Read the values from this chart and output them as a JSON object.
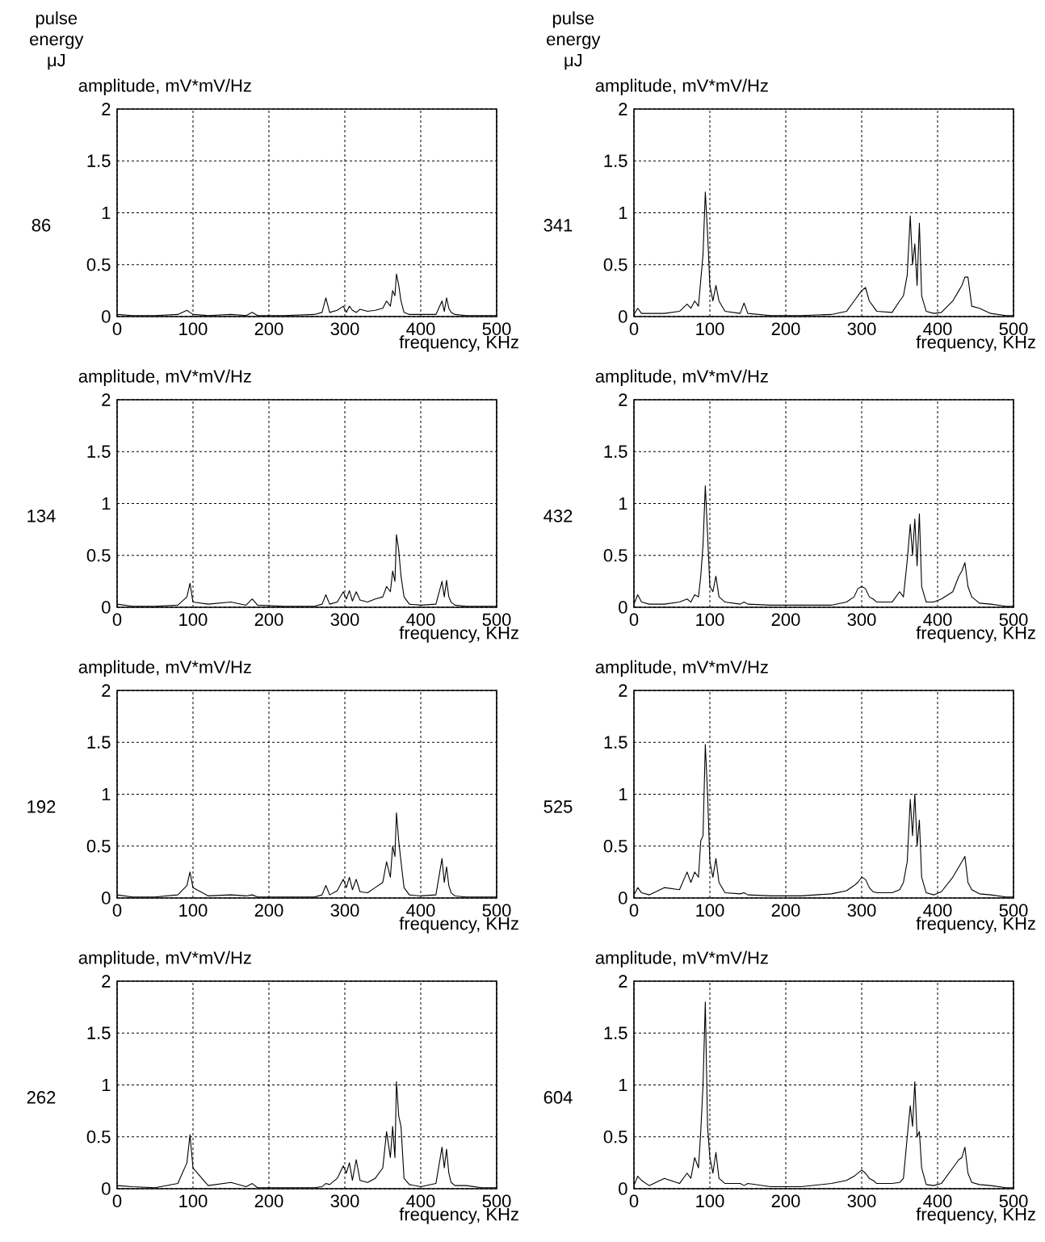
{
  "chart_data": [
    {
      "type": "line",
      "title": "86",
      "ylabel": "amplitude, mV*mV/Hz",
      "xlabel": "frequency, KHz",
      "annotations": [
        "pulse energy μJ"
      ],
      "grid": true,
      "xlim": [
        0,
        500
      ],
      "ylim": [
        0,
        2
      ],
      "xticks": [
        0,
        100,
        200,
        300,
        400,
        500
      ],
      "yticks": [
        0,
        0.5,
        1,
        1.5,
        2
      ],
      "series": [
        {
          "color": "#000000",
          "x": [
            0,
            20,
            50,
            80,
            92,
            96,
            100,
            120,
            150,
            170,
            178,
            185,
            220,
            260,
            270,
            275,
            280,
            290,
            298,
            302,
            306,
            310,
            315,
            320,
            330,
            340,
            350,
            355,
            360,
            363,
            366,
            368,
            371,
            374,
            378,
            385,
            400,
            420,
            428,
            431,
            434,
            437,
            440,
            445,
            460,
            480,
            500
          ],
          "values": [
            0.02,
            0.01,
            0.01,
            0.02,
            0.06,
            0.04,
            0.02,
            0.01,
            0.02,
            0.01,
            0.04,
            0.01,
            0.01,
            0.02,
            0.04,
            0.18,
            0.04,
            0.06,
            0.1,
            0.04,
            0.1,
            0.06,
            0.04,
            0.07,
            0.05,
            0.06,
            0.08,
            0.15,
            0.1,
            0.25,
            0.2,
            0.41,
            0.3,
            0.15,
            0.04,
            0.02,
            0.02,
            0.02,
            0.15,
            0.05,
            0.18,
            0.08,
            0.04,
            0.02,
            0.01,
            0.01,
            0.01
          ]
        }
      ]
    },
    {
      "type": "line",
      "title": "341",
      "ylabel": "amplitude, mV*mV/Hz",
      "xlabel": "frequency, KHz",
      "annotations": [
        "pulse energy μJ"
      ],
      "grid": true,
      "xlim": [
        0,
        500
      ],
      "ylim": [
        0,
        2
      ],
      "xticks": [
        0,
        100,
        200,
        300,
        400,
        500
      ],
      "yticks": [
        0,
        0.5,
        1,
        1.5,
        2
      ],
      "series": [
        {
          "color": "#000000",
          "x": [
            0,
            5,
            10,
            20,
            40,
            60,
            70,
            75,
            80,
            85,
            88,
            91,
            94,
            97,
            100,
            104,
            108,
            112,
            120,
            140,
            145,
            150,
            180,
            220,
            260,
            280,
            290,
            295,
            300,
            305,
            310,
            315,
            320,
            340,
            350,
            355,
            360,
            364,
            367,
            370,
            373,
            376,
            379,
            385,
            395,
            405,
            420,
            428,
            432,
            436,
            440,
            445,
            455,
            470,
            490,
            500
          ],
          "values": [
            0.02,
            0.08,
            0.03,
            0.03,
            0.03,
            0.05,
            0.12,
            0.08,
            0.15,
            0.1,
            0.35,
            0.6,
            1.2,
            0.8,
            0.3,
            0.15,
            0.3,
            0.15,
            0.05,
            0.03,
            0.13,
            0.03,
            0.01,
            0.01,
            0.02,
            0.05,
            0.15,
            0.2,
            0.25,
            0.28,
            0.15,
            0.1,
            0.05,
            0.04,
            0.15,
            0.2,
            0.4,
            0.97,
            0.5,
            0.7,
            0.3,
            0.9,
            0.2,
            0.05,
            0.03,
            0.04,
            0.15,
            0.25,
            0.3,
            0.38,
            0.38,
            0.1,
            0.08,
            0.03,
            0.01,
            0.01
          ]
        }
      ]
    },
    {
      "type": "line",
      "title": "134",
      "ylabel": "amplitude, mV*mV/Hz",
      "xlabel": "frequency, KHz",
      "grid": true,
      "xlim": [
        0,
        500
      ],
      "ylim": [
        0,
        2
      ],
      "xticks": [
        0,
        100,
        200,
        300,
        400,
        500
      ],
      "yticks": [
        0,
        0.5,
        1,
        1.5,
        2
      ],
      "series": [
        {
          "color": "#000000",
          "x": [
            0,
            20,
            50,
            80,
            92,
            96,
            100,
            120,
            150,
            170,
            178,
            185,
            220,
            260,
            270,
            275,
            280,
            290,
            298,
            302,
            306,
            310,
            315,
            320,
            330,
            340,
            350,
            355,
            360,
            363,
            366,
            368,
            371,
            374,
            378,
            385,
            400,
            420,
            428,
            431,
            434,
            437,
            440,
            445,
            460,
            480,
            500
          ],
          "values": [
            0.03,
            0.01,
            0.01,
            0.02,
            0.1,
            0.23,
            0.05,
            0.03,
            0.05,
            0.02,
            0.08,
            0.02,
            0.01,
            0.01,
            0.03,
            0.12,
            0.03,
            0.05,
            0.15,
            0.08,
            0.16,
            0.06,
            0.15,
            0.07,
            0.05,
            0.08,
            0.1,
            0.2,
            0.15,
            0.35,
            0.25,
            0.7,
            0.55,
            0.3,
            0.1,
            0.03,
            0.02,
            0.03,
            0.25,
            0.1,
            0.26,
            0.1,
            0.05,
            0.02,
            0.01,
            0.01,
            0.01
          ]
        }
      ]
    },
    {
      "type": "line",
      "title": "432",
      "ylabel": "amplitude, mV*mV/Hz",
      "xlabel": "frequency, KHz",
      "grid": true,
      "xlim": [
        0,
        500
      ],
      "ylim": [
        0,
        2
      ],
      "xticks": [
        0,
        100,
        200,
        300,
        400,
        500
      ],
      "yticks": [
        0,
        0.5,
        1,
        1.5,
        2
      ],
      "series": [
        {
          "color": "#000000",
          "x": [
            0,
            5,
            10,
            20,
            40,
            60,
            70,
            75,
            80,
            85,
            88,
            91,
            94,
            97,
            100,
            104,
            108,
            112,
            120,
            140,
            145,
            150,
            180,
            220,
            260,
            280,
            290,
            295,
            300,
            305,
            310,
            315,
            320,
            340,
            350,
            355,
            360,
            364,
            367,
            370,
            373,
            376,
            379,
            385,
            395,
            405,
            420,
            428,
            432,
            436,
            440,
            445,
            455,
            470,
            490,
            500
          ],
          "values": [
            0.03,
            0.12,
            0.05,
            0.03,
            0.03,
            0.05,
            0.08,
            0.05,
            0.12,
            0.1,
            0.3,
            0.6,
            1.17,
            0.7,
            0.2,
            0.15,
            0.3,
            0.1,
            0.05,
            0.03,
            0.05,
            0.03,
            0.02,
            0.02,
            0.02,
            0.05,
            0.1,
            0.18,
            0.2,
            0.18,
            0.1,
            0.08,
            0.05,
            0.05,
            0.15,
            0.1,
            0.45,
            0.8,
            0.5,
            0.85,
            0.4,
            0.9,
            0.2,
            0.05,
            0.05,
            0.08,
            0.15,
            0.3,
            0.35,
            0.43,
            0.2,
            0.1,
            0.04,
            0.03,
            0.01,
            0.01
          ]
        }
      ]
    },
    {
      "type": "line",
      "title": "192",
      "ylabel": "amplitude, mV*mV/Hz",
      "xlabel": "frequency, KHz",
      "grid": true,
      "xlim": [
        0,
        500
      ],
      "ylim": [
        0,
        2
      ],
      "xticks": [
        0,
        100,
        200,
        300,
        400,
        500
      ],
      "yticks": [
        0,
        0.5,
        1,
        1.5,
        2
      ],
      "series": [
        {
          "color": "#000000",
          "x": [
            0,
            20,
            50,
            80,
            92,
            96,
            100,
            120,
            150,
            170,
            178,
            185,
            220,
            260,
            270,
            275,
            280,
            290,
            298,
            302,
            306,
            310,
            315,
            320,
            330,
            340,
            350,
            355,
            360,
            363,
            366,
            368,
            371,
            374,
            378,
            385,
            400,
            420,
            428,
            431,
            434,
            437,
            440,
            445,
            460,
            480,
            500
          ],
          "values": [
            0.03,
            0.01,
            0.01,
            0.03,
            0.12,
            0.25,
            0.1,
            0.02,
            0.03,
            0.02,
            0.03,
            0.01,
            0.01,
            0.01,
            0.03,
            0.12,
            0.03,
            0.07,
            0.18,
            0.1,
            0.2,
            0.08,
            0.18,
            0.06,
            0.05,
            0.1,
            0.15,
            0.35,
            0.2,
            0.5,
            0.4,
            0.82,
            0.55,
            0.35,
            0.1,
            0.03,
            0.02,
            0.03,
            0.38,
            0.15,
            0.3,
            0.12,
            0.05,
            0.02,
            0.01,
            0.01,
            0.01
          ]
        }
      ]
    },
    {
      "type": "line",
      "title": "525",
      "ylabel": "amplitude, mV*mV/Hz",
      "xlabel": "frequency, KHz",
      "grid": true,
      "xlim": [
        0,
        500
      ],
      "ylim": [
        0,
        2
      ],
      "xticks": [
        0,
        100,
        200,
        300,
        400,
        500
      ],
      "yticks": [
        0,
        0.5,
        1,
        1.5,
        2
      ],
      "series": [
        {
          "color": "#000000",
          "x": [
            0,
            5,
            10,
            20,
            40,
            60,
            70,
            75,
            80,
            85,
            88,
            91,
            94,
            97,
            100,
            104,
            108,
            112,
            120,
            140,
            145,
            150,
            180,
            220,
            260,
            280,
            290,
            295,
            300,
            305,
            310,
            315,
            320,
            340,
            350,
            355,
            360,
            364,
            367,
            370,
            373,
            376,
            379,
            385,
            395,
            405,
            420,
            428,
            432,
            436,
            440,
            445,
            455,
            470,
            490,
            500
          ],
          "values": [
            0.03,
            0.1,
            0.05,
            0.03,
            0.1,
            0.08,
            0.25,
            0.15,
            0.25,
            0.2,
            0.55,
            0.6,
            1.48,
            1.0,
            0.35,
            0.2,
            0.38,
            0.15,
            0.05,
            0.04,
            0.05,
            0.03,
            0.02,
            0.02,
            0.04,
            0.07,
            0.12,
            0.15,
            0.2,
            0.18,
            0.1,
            0.06,
            0.05,
            0.05,
            0.08,
            0.15,
            0.35,
            0.95,
            0.6,
            1.0,
            0.5,
            0.75,
            0.2,
            0.05,
            0.03,
            0.06,
            0.2,
            0.3,
            0.35,
            0.4,
            0.15,
            0.08,
            0.04,
            0.03,
            0.01,
            0.01
          ]
        }
      ]
    },
    {
      "type": "line",
      "title": "262",
      "ylabel": "amplitude, mV*mV/Hz",
      "xlabel": "frequency, KHz",
      "grid": true,
      "xlim": [
        0,
        500
      ],
      "ylim": [
        0,
        2
      ],
      "xticks": [
        0,
        100,
        200,
        300,
        400,
        500
      ],
      "yticks": [
        0,
        0.5,
        1,
        1.5,
        2
      ],
      "series": [
        {
          "color": "#000000",
          "x": [
            0,
            20,
            50,
            80,
            92,
            96,
            100,
            120,
            150,
            170,
            178,
            185,
            220,
            260,
            270,
            275,
            280,
            290,
            298,
            302,
            306,
            310,
            315,
            320,
            330,
            340,
            350,
            355,
            360,
            363,
            366,
            368,
            371,
            374,
            378,
            385,
            400,
            420,
            428,
            431,
            434,
            437,
            440,
            445,
            460,
            480,
            500
          ],
          "values": [
            0.03,
            0.02,
            0.01,
            0.05,
            0.25,
            0.52,
            0.2,
            0.03,
            0.06,
            0.02,
            0.05,
            0.01,
            0.01,
            0.01,
            0.02,
            0.05,
            0.04,
            0.1,
            0.22,
            0.15,
            0.25,
            0.08,
            0.28,
            0.08,
            0.06,
            0.1,
            0.2,
            0.55,
            0.3,
            0.6,
            0.3,
            1.03,
            0.7,
            0.6,
            0.1,
            0.04,
            0.02,
            0.05,
            0.4,
            0.2,
            0.38,
            0.15,
            0.06,
            0.03,
            0.03,
            0.01,
            0.01
          ]
        }
      ]
    },
    {
      "type": "line",
      "title": "604",
      "ylabel": "amplitude, mV*mV/Hz",
      "xlabel": "frequency, KHz",
      "grid": true,
      "xlim": [
        0,
        500
      ],
      "ylim": [
        0,
        2
      ],
      "xticks": [
        0,
        100,
        200,
        300,
        400,
        500
      ],
      "yticks": [
        0,
        0.5,
        1,
        1.5,
        2
      ],
      "series": [
        {
          "color": "#000000",
          "x": [
            0,
            5,
            10,
            20,
            40,
            60,
            70,
            75,
            80,
            85,
            88,
            91,
            94,
            97,
            100,
            104,
            108,
            112,
            120,
            140,
            145,
            150,
            180,
            220,
            260,
            280,
            290,
            295,
            300,
            305,
            310,
            315,
            320,
            340,
            350,
            355,
            360,
            364,
            367,
            370,
            373,
            376,
            379,
            385,
            395,
            405,
            420,
            428,
            432,
            436,
            440,
            445,
            455,
            470,
            490,
            500
          ],
          "values": [
            0.03,
            0.12,
            0.08,
            0.03,
            0.1,
            0.05,
            0.15,
            0.1,
            0.3,
            0.2,
            0.55,
            1.0,
            1.8,
            0.6,
            0.3,
            0.15,
            0.35,
            0.1,
            0.05,
            0.05,
            0.03,
            0.05,
            0.02,
            0.02,
            0.05,
            0.08,
            0.12,
            0.15,
            0.18,
            0.15,
            0.1,
            0.08,
            0.05,
            0.05,
            0.06,
            0.1,
            0.5,
            0.8,
            0.6,
            1.03,
            0.5,
            0.55,
            0.2,
            0.04,
            0.03,
            0.05,
            0.2,
            0.28,
            0.3,
            0.4,
            0.15,
            0.06,
            0.04,
            0.03,
            0.01,
            0.01
          ]
        }
      ]
    }
  ]
}
